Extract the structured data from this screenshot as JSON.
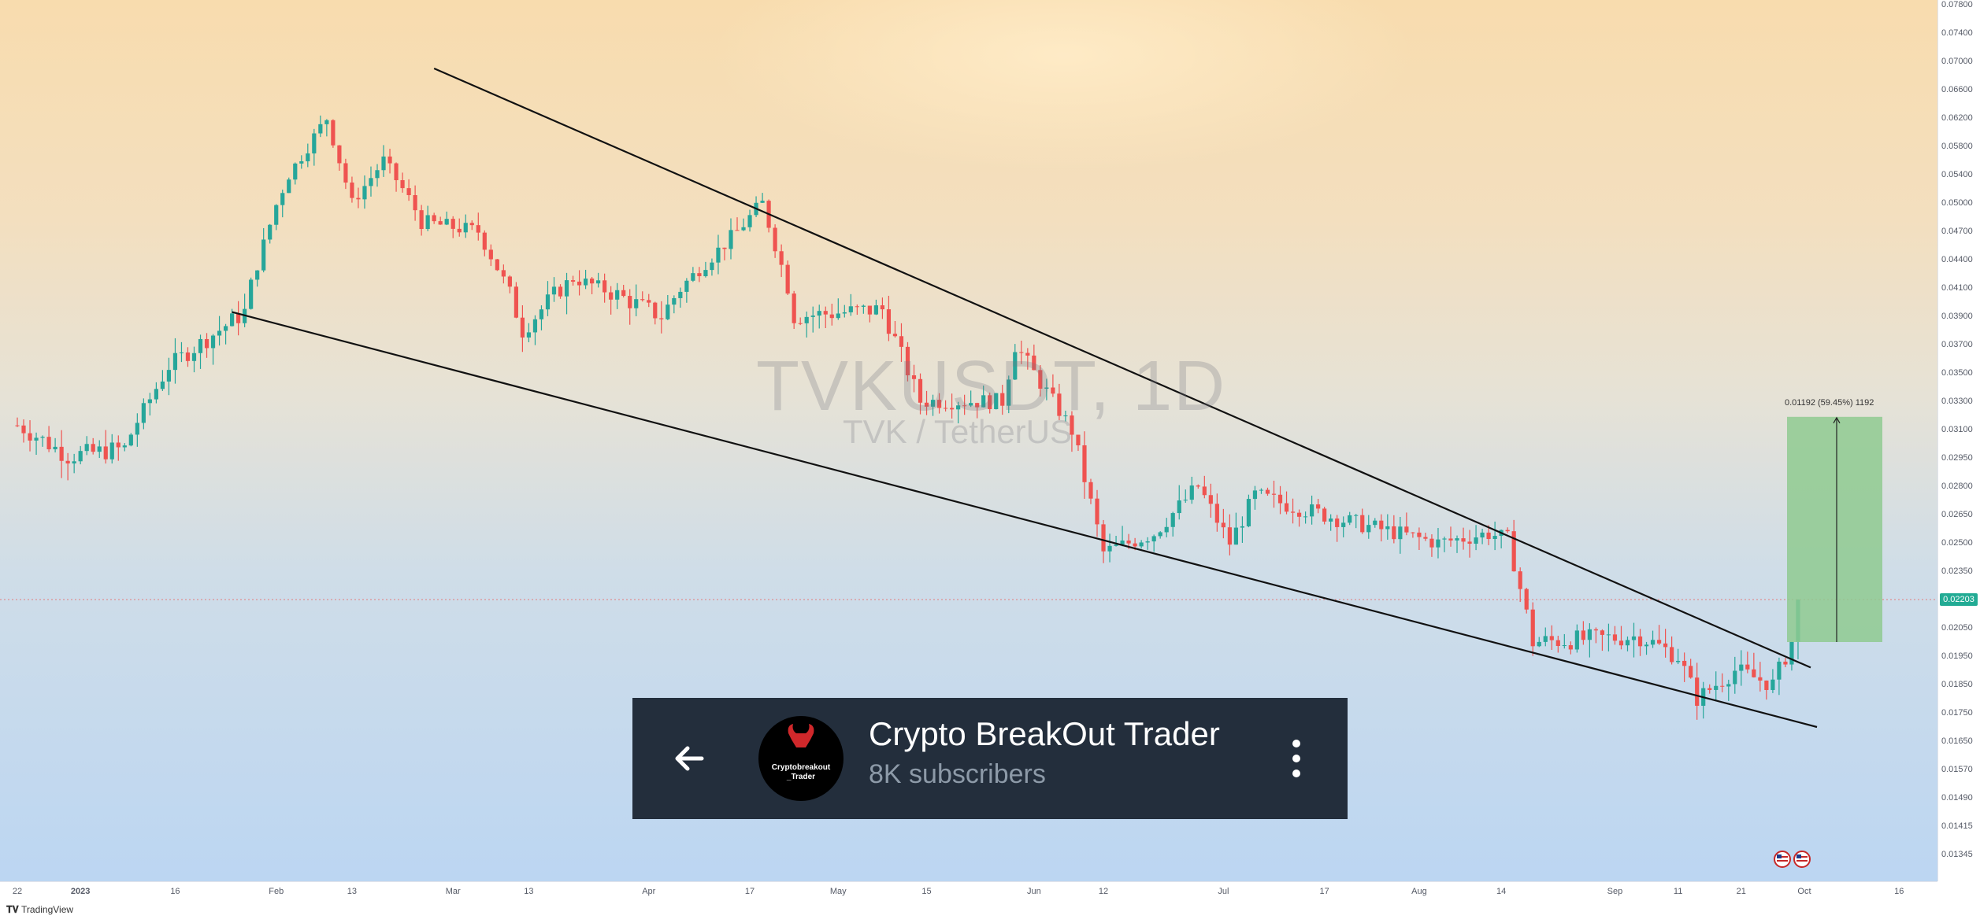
{
  "chart_data": {
    "type": "candlestick",
    "title": "TVKUSDT, 1D",
    "subtitle": "TVK / TetherUS",
    "price_axis": {
      "ticks": [
        "0.07800",
        "0.07400",
        "0.07000",
        "0.06600",
        "0.06200",
        "0.05800",
        "0.05400",
        "0.05000",
        "0.04700",
        "0.04400",
        "0.04100",
        "0.03900",
        "0.03700",
        "0.03500",
        "0.03300",
        "0.03100",
        "0.02950",
        "0.02800",
        "0.02650",
        "0.02500",
        "0.02350",
        "0.02203",
        "0.02050",
        "0.01950",
        "0.01850",
        "0.01750",
        "0.01650",
        "0.01570",
        "0.01490",
        "0.01415",
        "0.01345"
      ]
    },
    "time_axis": {
      "ticks": [
        "22",
        "2023",
        "16",
        "Feb",
        "13",
        "Mar",
        "13",
        "Apr",
        "17",
        "May",
        "15",
        "Jun",
        "12",
        "Jul",
        "17",
        "Aug",
        "14",
        "Sep",
        "11",
        "21",
        "Oct",
        "16"
      ]
    },
    "current_price": "0.02203",
    "measurement": {
      "label": "0.01192 (59.45%) 1192",
      "from": 0.02,
      "to": 0.0319
    },
    "trendlines": [
      {
        "name": "upper",
        "from": {
          "date": "2023-02-26",
          "price": 0.069
        },
        "to": {
          "date": "2023-10-02",
          "price": 0.0191
        }
      },
      {
        "name": "lower",
        "from": {
          "date": "2023-01-25",
          "price": 0.0393
        },
        "to": {
          "date": "2023-10-03",
          "price": 0.017
        }
      }
    ],
    "path_points": [
      {
        "date": "2022-12-22",
        "price": 0.0313
      },
      {
        "date": "2022-12-30",
        "price": 0.0296
      },
      {
        "date": "2023-01-08",
        "price": 0.03
      },
      {
        "date": "2023-01-15",
        "price": 0.0355
      },
      {
        "date": "2023-01-27",
        "price": 0.0393
      },
      {
        "date": "2023-02-03",
        "price": 0.054
      },
      {
        "date": "2023-02-09",
        "price": 0.062
      },
      {
        "date": "2023-02-13",
        "price": 0.05
      },
      {
        "date": "2023-02-18",
        "price": 0.056
      },
      {
        "date": "2023-02-24",
        "price": 0.048
      },
      {
        "date": "2023-03-05",
        "price": 0.047
      },
      {
        "date": "2023-03-12",
        "price": 0.038
      },
      {
        "date": "2023-03-20",
        "price": 0.042
      },
      {
        "date": "2023-04-03",
        "price": 0.039
      },
      {
        "date": "2023-04-15",
        "price": 0.047
      },
      {
        "date": "2023-04-19",
        "price": 0.05
      },
      {
        "date": "2023-04-24",
        "price": 0.039
      },
      {
        "date": "2023-05-08",
        "price": 0.0395
      },
      {
        "date": "2023-05-14",
        "price": 0.033
      },
      {
        "date": "2023-05-27",
        "price": 0.033
      },
      {
        "date": "2023-05-29",
        "price": 0.037
      },
      {
        "date": "2023-06-07",
        "price": 0.031
      },
      {
        "date": "2023-06-12",
        "price": 0.0245
      },
      {
        "date": "2023-06-20",
        "price": 0.0255
      },
      {
        "date": "2023-06-27",
        "price": 0.028
      },
      {
        "date": "2023-07-02",
        "price": 0.025
      },
      {
        "date": "2023-07-06",
        "price": 0.0275
      },
      {
        "date": "2023-07-20",
        "price": 0.0262
      },
      {
        "date": "2023-08-04",
        "price": 0.025
      },
      {
        "date": "2023-08-12",
        "price": 0.0255
      },
      {
        "date": "2023-08-15",
        "price": 0.0252
      },
      {
        "date": "2023-08-19",
        "price": 0.02
      },
      {
        "date": "2023-09-05",
        "price": 0.0202
      },
      {
        "date": "2023-09-11",
        "price": 0.0195
      },
      {
        "date": "2023-09-14",
        "price": 0.018
      },
      {
        "date": "2023-09-20",
        "price": 0.019
      },
      {
        "date": "2023-09-26",
        "price": 0.0185
      },
      {
        "date": "2023-09-29",
        "price": 0.02
      },
      {
        "date": "2023-09-30",
        "price": 0.02203
      }
    ],
    "grid": false
  },
  "banner": {
    "title": "Crypto BreakOut Trader",
    "subscribers": "8K subscribers",
    "avatar_text_1": "Cryptobreakout",
    "avatar_text_2": "_Trader"
  },
  "footer": {
    "logo": "TradingView"
  },
  "colors": {
    "up": "#26a69a",
    "down": "#ef5350",
    "measure_fill": "#8fca90",
    "banner_bg": "#232e3c",
    "trendline": "#111111"
  },
  "icons": {
    "back": "arrow-left-icon",
    "menu": "kebab-menu-icon",
    "bull": "bull-head-icon",
    "flag": "us-flag-icon"
  }
}
